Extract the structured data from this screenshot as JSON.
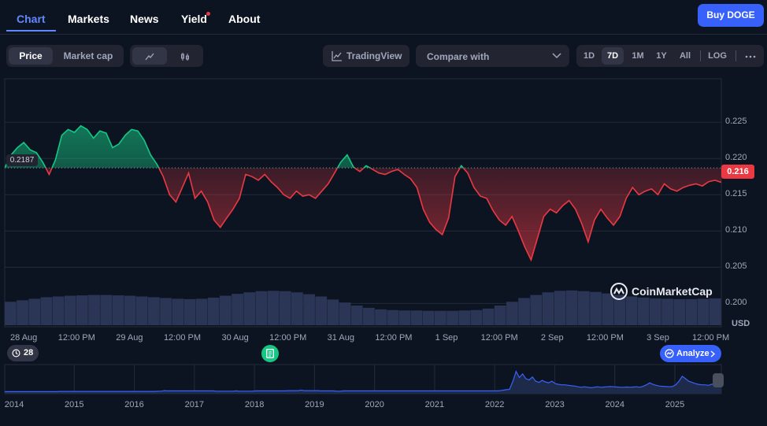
{
  "nav": {
    "tabs": [
      "Chart",
      "Markets",
      "News",
      "Yield",
      "About"
    ],
    "buy_label": "Buy DOGE"
  },
  "toolbar": {
    "price_label": "Price",
    "marketcap_label": "Market cap",
    "tradingview_label": "TradingView",
    "compare_label": "Compare with",
    "ranges": [
      "1D",
      "7D",
      "1M",
      "1Y",
      "All"
    ],
    "active_range": "7D",
    "log_label": "LOG"
  },
  "colors": {
    "up": "#16c784",
    "down": "#ea3943",
    "accent": "#3861fb",
    "background": "#0d1421"
  },
  "chart": {
    "current_price": "0.216",
    "start_price": "0.2187",
    "currency": "USD",
    "watermark": "CoinMarketCap",
    "history_count": "28",
    "analyze_label": "Analyze"
  },
  "chart_data": {
    "type": "area",
    "ylim": [
      0.197,
      0.231
    ],
    "yticks": [
      "0.225",
      "0.220",
      "0.215",
      "0.210",
      "0.205",
      "0.200"
    ],
    "baseline": 0.2187,
    "x_tick_labels": [
      "28 Aug",
      "12:00 PM",
      "29 Aug",
      "12:00 PM",
      "30 Aug",
      "12:00 PM",
      "31 Aug",
      "12:00 PM",
      "1 Sep",
      "12:00 PM",
      "2 Sep",
      "12:00 PM",
      "3 Sep",
      "12:00 PM"
    ],
    "x_days": [
      0,
      0.5,
      1,
      1.5,
      2,
      2.5,
      3,
      3.5,
      4,
      4.5,
      5,
      5.5,
      6,
      6.5
    ],
    "x_range_days": [
      -0.18,
      6.6
    ],
    "series": [
      {
        "x": [
          -0.18,
          -0.12,
          -0.06,
          0.0,
          0.06,
          0.12,
          0.18,
          0.24,
          0.3,
          0.36,
          0.42,
          0.48,
          0.54,
          0.6,
          0.66,
          0.72,
          0.78,
          0.84,
          0.9,
          0.96,
          1.02,
          1.08,
          1.14,
          1.2,
          1.26,
          1.32,
          1.38,
          1.44,
          1.5,
          1.56,
          1.62,
          1.68,
          1.74,
          1.8,
          1.86,
          1.92,
          1.98,
          2.04,
          2.1,
          2.16,
          2.22,
          2.28,
          2.34,
          2.4,
          2.46,
          2.52,
          2.58,
          2.64,
          2.7,
          2.76,
          2.82,
          2.88,
          2.94,
          3.0,
          3.06,
          3.12,
          3.18,
          3.24,
          3.3,
          3.36,
          3.42,
          3.48,
          3.54,
          3.6,
          3.66,
          3.72,
          3.78,
          3.84,
          3.9,
          3.96,
          4.02,
          4.08,
          4.14,
          4.2,
          4.26,
          4.32,
          4.38,
          4.44,
          4.5,
          4.56,
          4.62,
          4.68,
          4.74,
          4.8,
          4.86,
          4.92,
          4.98,
          5.04,
          5.1,
          5.16,
          5.22,
          5.28,
          5.34,
          5.4,
          5.46,
          5.52,
          5.58,
          5.64,
          5.7,
          5.76,
          5.82,
          5.88,
          5.94,
          6.0,
          6.06,
          6.12,
          6.18,
          6.24,
          6.3,
          6.36,
          6.42,
          6.48,
          6.54,
          6.6
        ],
        "values": [
          0.2187,
          0.2205,
          0.2215,
          0.2222,
          0.2212,
          0.2208,
          0.2195,
          0.2178,
          0.2198,
          0.2232,
          0.224,
          0.2236,
          0.2245,
          0.224,
          0.2228,
          0.2238,
          0.2235,
          0.2215,
          0.222,
          0.2232,
          0.224,
          0.2238,
          0.2225,
          0.2205,
          0.2192,
          0.2175,
          0.215,
          0.214,
          0.216,
          0.218,
          0.2145,
          0.2155,
          0.214,
          0.2115,
          0.2105,
          0.2118,
          0.213,
          0.2145,
          0.2178,
          0.2175,
          0.217,
          0.2178,
          0.2168,
          0.216,
          0.215,
          0.2145,
          0.2155,
          0.2148,
          0.215,
          0.2145,
          0.2155,
          0.2165,
          0.218,
          0.2195,
          0.2205,
          0.2188,
          0.2182,
          0.219,
          0.2185,
          0.218,
          0.2178,
          0.2182,
          0.2185,
          0.2178,
          0.2172,
          0.216,
          0.213,
          0.2112,
          0.2102,
          0.2095,
          0.2118,
          0.2175,
          0.219,
          0.218,
          0.216,
          0.2148,
          0.2145,
          0.2128,
          0.2115,
          0.2108,
          0.212,
          0.21,
          0.2078,
          0.206,
          0.209,
          0.212,
          0.213,
          0.2125,
          0.2135,
          0.2142,
          0.213,
          0.211,
          0.2085,
          0.2115,
          0.213,
          0.2118,
          0.2108,
          0.212,
          0.2145,
          0.216,
          0.215,
          0.2155,
          0.2158,
          0.215,
          0.2165,
          0.2158,
          0.2155,
          0.216,
          0.2163,
          0.2165,
          0.2162,
          0.2168,
          0.217,
          0.2167
        ]
      }
    ],
    "volume_relative": [
      0.62,
      0.66,
      0.7,
      0.74,
      0.76,
      0.78,
      0.79,
      0.8,
      0.8,
      0.79,
      0.78,
      0.76,
      0.74,
      0.72,
      0.7,
      0.69,
      0.7,
      0.73,
      0.78,
      0.83,
      0.87,
      0.9,
      0.91,
      0.9,
      0.87,
      0.82,
      0.76,
      0.68,
      0.6,
      0.52,
      0.46,
      0.42,
      0.4,
      0.39,
      0.39,
      0.38,
      0.38,
      0.38,
      0.39,
      0.4,
      0.44,
      0.52,
      0.62,
      0.72,
      0.8,
      0.87,
      0.91,
      0.92,
      0.9,
      0.88,
      0.84,
      0.8,
      0.76,
      0.73,
      0.71,
      0.7,
      0.69,
      0.69,
      0.7,
      0.71
    ],
    "navigator": {
      "year_labels": [
        "2014",
        "2015",
        "2016",
        "2017",
        "2018",
        "2019",
        "2020",
        "2021",
        "2022",
        "2023",
        "2024",
        "2025"
      ],
      "relative_values": [
        0.02,
        0.02,
        0.02,
        0.02,
        0.02,
        0.02,
        0.02,
        0.02,
        0.02,
        0.02,
        0.02,
        0.02,
        0.02,
        0.02,
        0.02,
        0.02,
        0.02,
        0.03,
        0.03,
        0.03,
        0.03,
        0.03,
        0.03,
        0.03,
        0.03,
        0.03,
        0.03,
        0.03,
        0.03,
        0.03,
        0.03,
        0.03,
        0.03,
        0.03,
        0.03,
        0.03,
        0.03,
        0.03,
        0.03,
        0.03,
        0.03,
        0.03,
        0.03,
        0.03,
        0.03,
        0.03,
        0.03,
        0.04,
        0.04,
        0.06,
        0.05,
        0.05,
        0.05,
        0.05,
        0.05,
        0.05,
        0.05,
        0.05,
        0.05,
        0.05,
        0.05,
        0.05,
        0.05,
        0.05,
        0.05,
        0.04,
        0.04,
        0.04,
        0.04,
        0.04,
        0.04,
        0.05,
        0.04,
        0.04,
        0.04,
        0.04,
        0.04,
        0.05,
        0.05,
        0.05,
        0.05,
        0.05,
        0.05,
        0.05,
        0.05,
        0.05,
        0.05,
        0.06,
        0.06,
        0.06,
        0.06,
        0.08,
        0.06,
        0.06,
        0.06,
        0.06,
        0.06,
        0.05,
        0.05,
        0.05,
        0.05,
        0.05,
        0.04,
        0.04,
        0.05,
        0.05,
        0.05,
        0.05,
        0.05,
        0.05,
        0.05,
        0.05,
        0.05,
        0.05,
        0.05,
        0.05,
        0.05,
        0.05,
        0.05,
        0.05,
        0.05,
        0.05,
        0.05,
        0.05,
        0.05,
        0.05,
        0.05,
        0.05,
        0.05,
        0.05,
        0.05,
        0.05,
        0.05,
        0.05,
        0.05,
        0.05,
        0.05,
        0.05,
        0.05,
        0.05,
        0.05,
        0.05,
        0.05,
        0.05,
        0.05,
        0.05,
        0.05,
        0.05,
        0.05,
        0.05,
        0.05,
        0.05,
        0.06,
        0.08,
        0.1,
        0.12,
        0.45,
        0.85,
        0.6,
        0.75,
        0.55,
        0.5,
        0.62,
        0.45,
        0.4,
        0.48,
        0.42,
        0.38,
        0.45,
        0.35,
        0.32,
        0.3,
        0.3,
        0.28,
        0.26,
        0.25,
        0.22,
        0.2,
        0.22,
        0.2,
        0.18,
        0.2,
        0.22,
        0.2,
        0.21,
        0.22,
        0.23,
        0.22,
        0.21,
        0.2,
        0.2,
        0.21,
        0.2,
        0.21,
        0.22,
        0.2,
        0.24,
        0.3,
        0.38,
        0.32,
        0.28,
        0.25,
        0.24,
        0.23,
        0.22,
        0.23,
        0.3,
        0.45,
        0.65,
        0.55,
        0.45,
        0.4,
        0.35,
        0.32,
        0.3,
        0.3,
        0.28,
        0.32,
        0.34,
        0.33,
        0.35
      ]
    }
  }
}
